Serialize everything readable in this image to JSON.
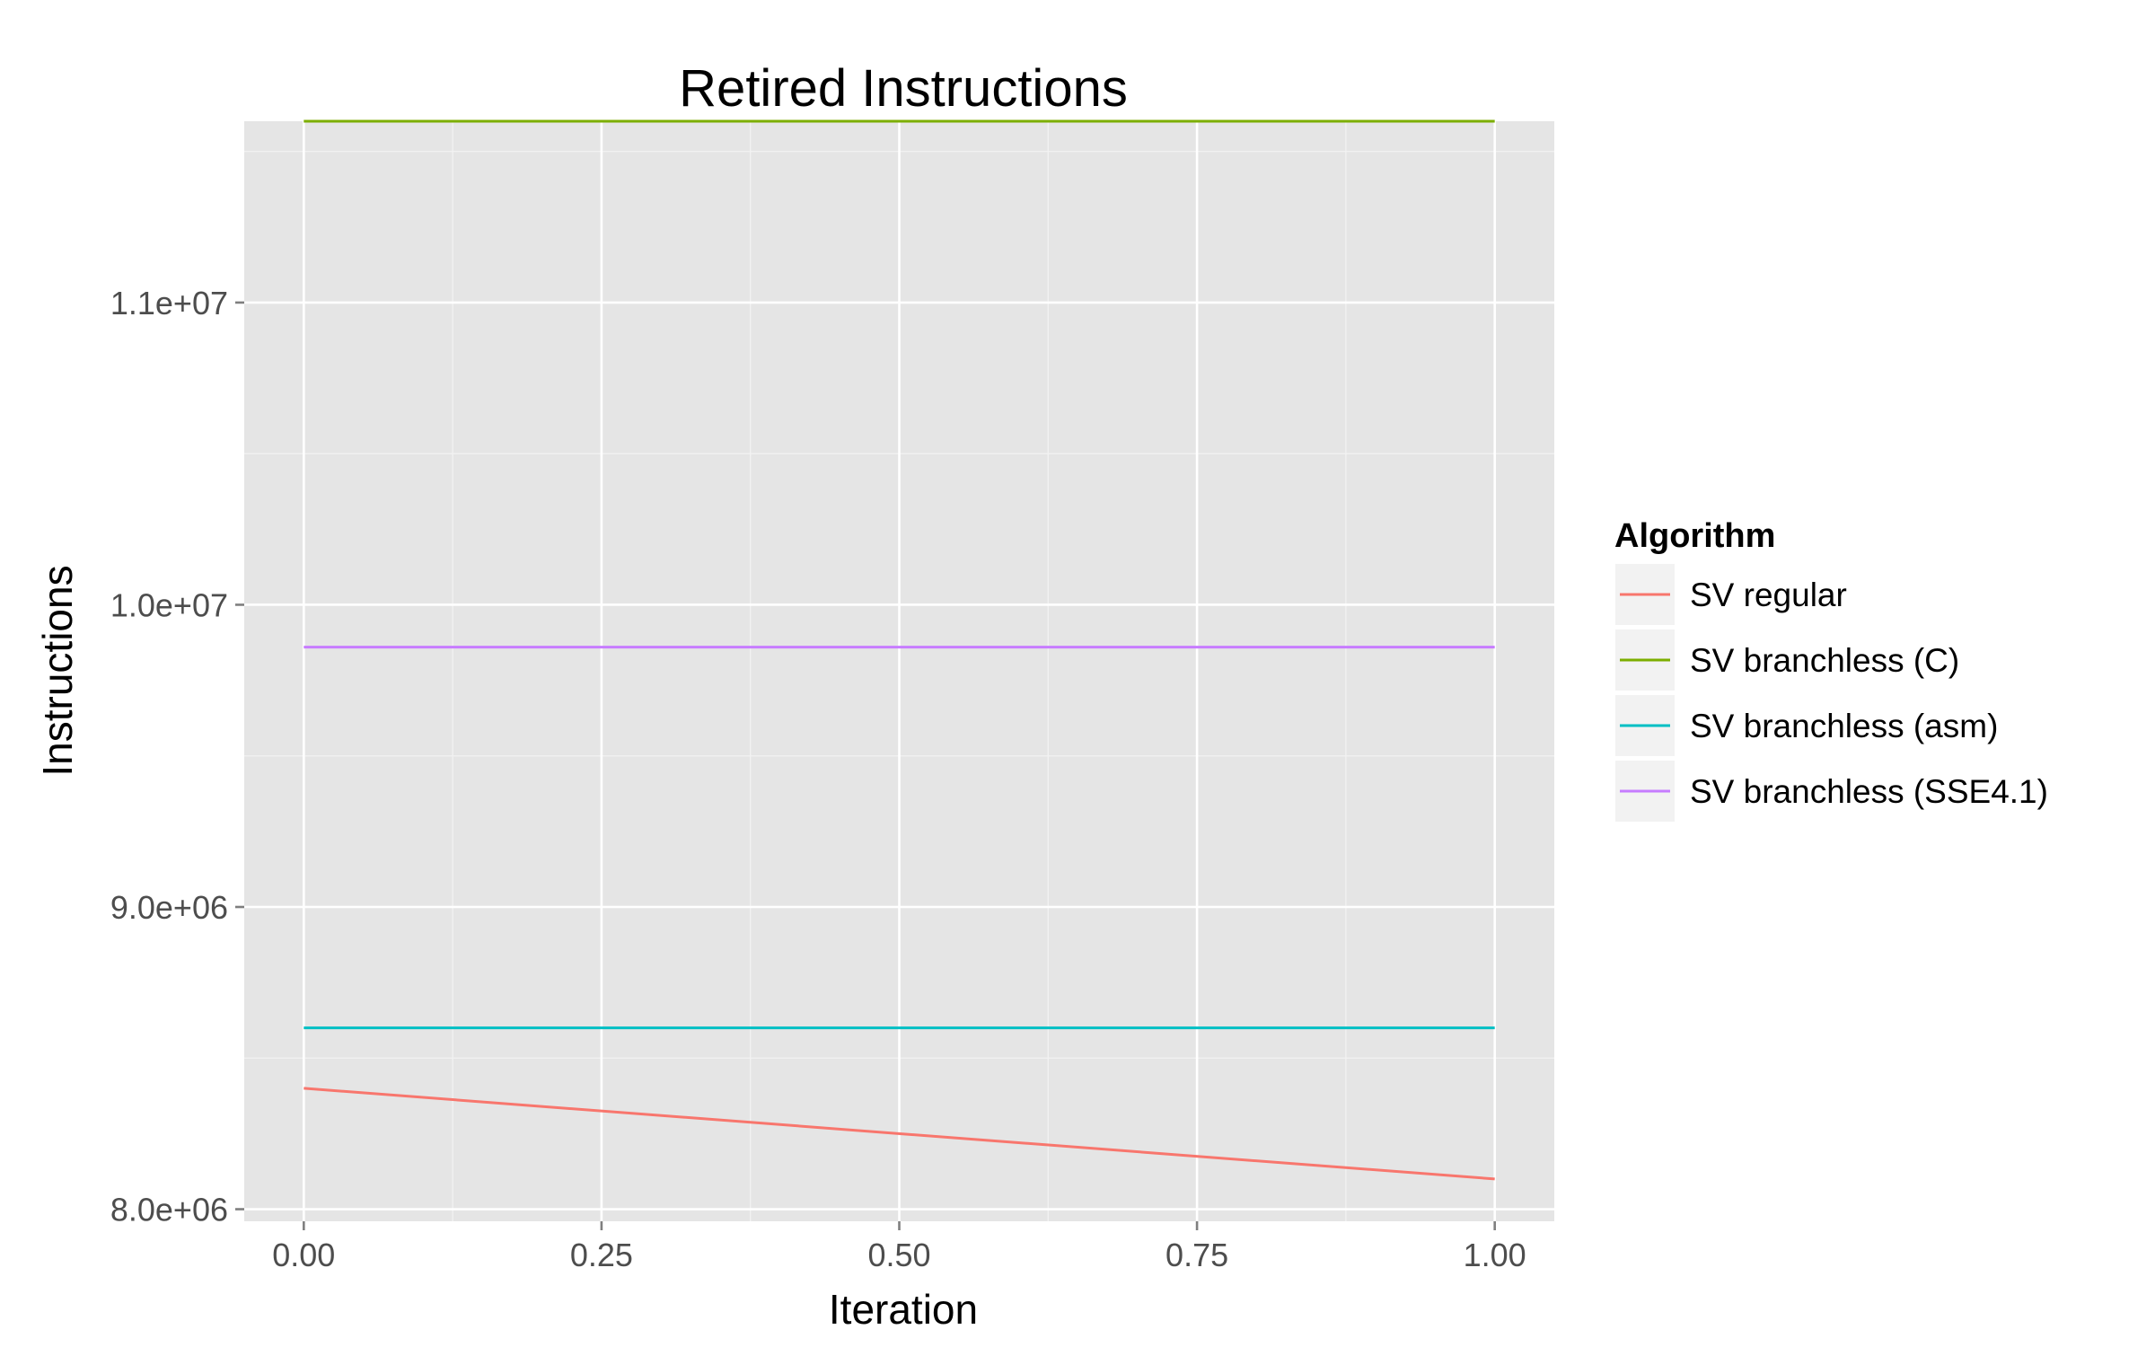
{
  "chart_data": {
    "type": "line",
    "title": "Retired Instructions",
    "xlabel": "Iteration",
    "ylabel": "Instructions",
    "xlim": [
      -0.05,
      1.05
    ],
    "ylim": [
      7960000,
      11600000
    ],
    "x_ticks": [
      0,
      0.25,
      0.5,
      0.75,
      1
    ],
    "x_tick_labels": [
      "0.00",
      "0.25",
      "0.50",
      "0.75",
      "1.00"
    ],
    "y_ticks": [
      8000000,
      9000000,
      10000000,
      11000000
    ],
    "y_tick_labels": [
      "8.0e+06",
      "9.0e+06",
      "1.0e+07",
      "1.1e+07"
    ],
    "grid": true,
    "legend": {
      "title": "Algorithm",
      "placement": "right"
    },
    "series": [
      {
        "name": "SV regular",
        "color": "#F8766D",
        "x": [
          0,
          1
        ],
        "y": [
          8400000,
          8100000
        ]
      },
      {
        "name": "SV branchless (C)",
        "color": "#7CAE00",
        "x": [
          0,
          1
        ],
        "y": [
          11600000,
          11600000
        ]
      },
      {
        "name": "SV branchless (asm)",
        "color": "#00BFC4",
        "x": [
          0,
          1
        ],
        "y": [
          8600000,
          8600000
        ]
      },
      {
        "name": "SV branchless (SSE4.1)",
        "color": "#C77CFF",
        "x": [
          0,
          1
        ],
        "y": [
          9860000,
          9860000
        ]
      }
    ]
  }
}
